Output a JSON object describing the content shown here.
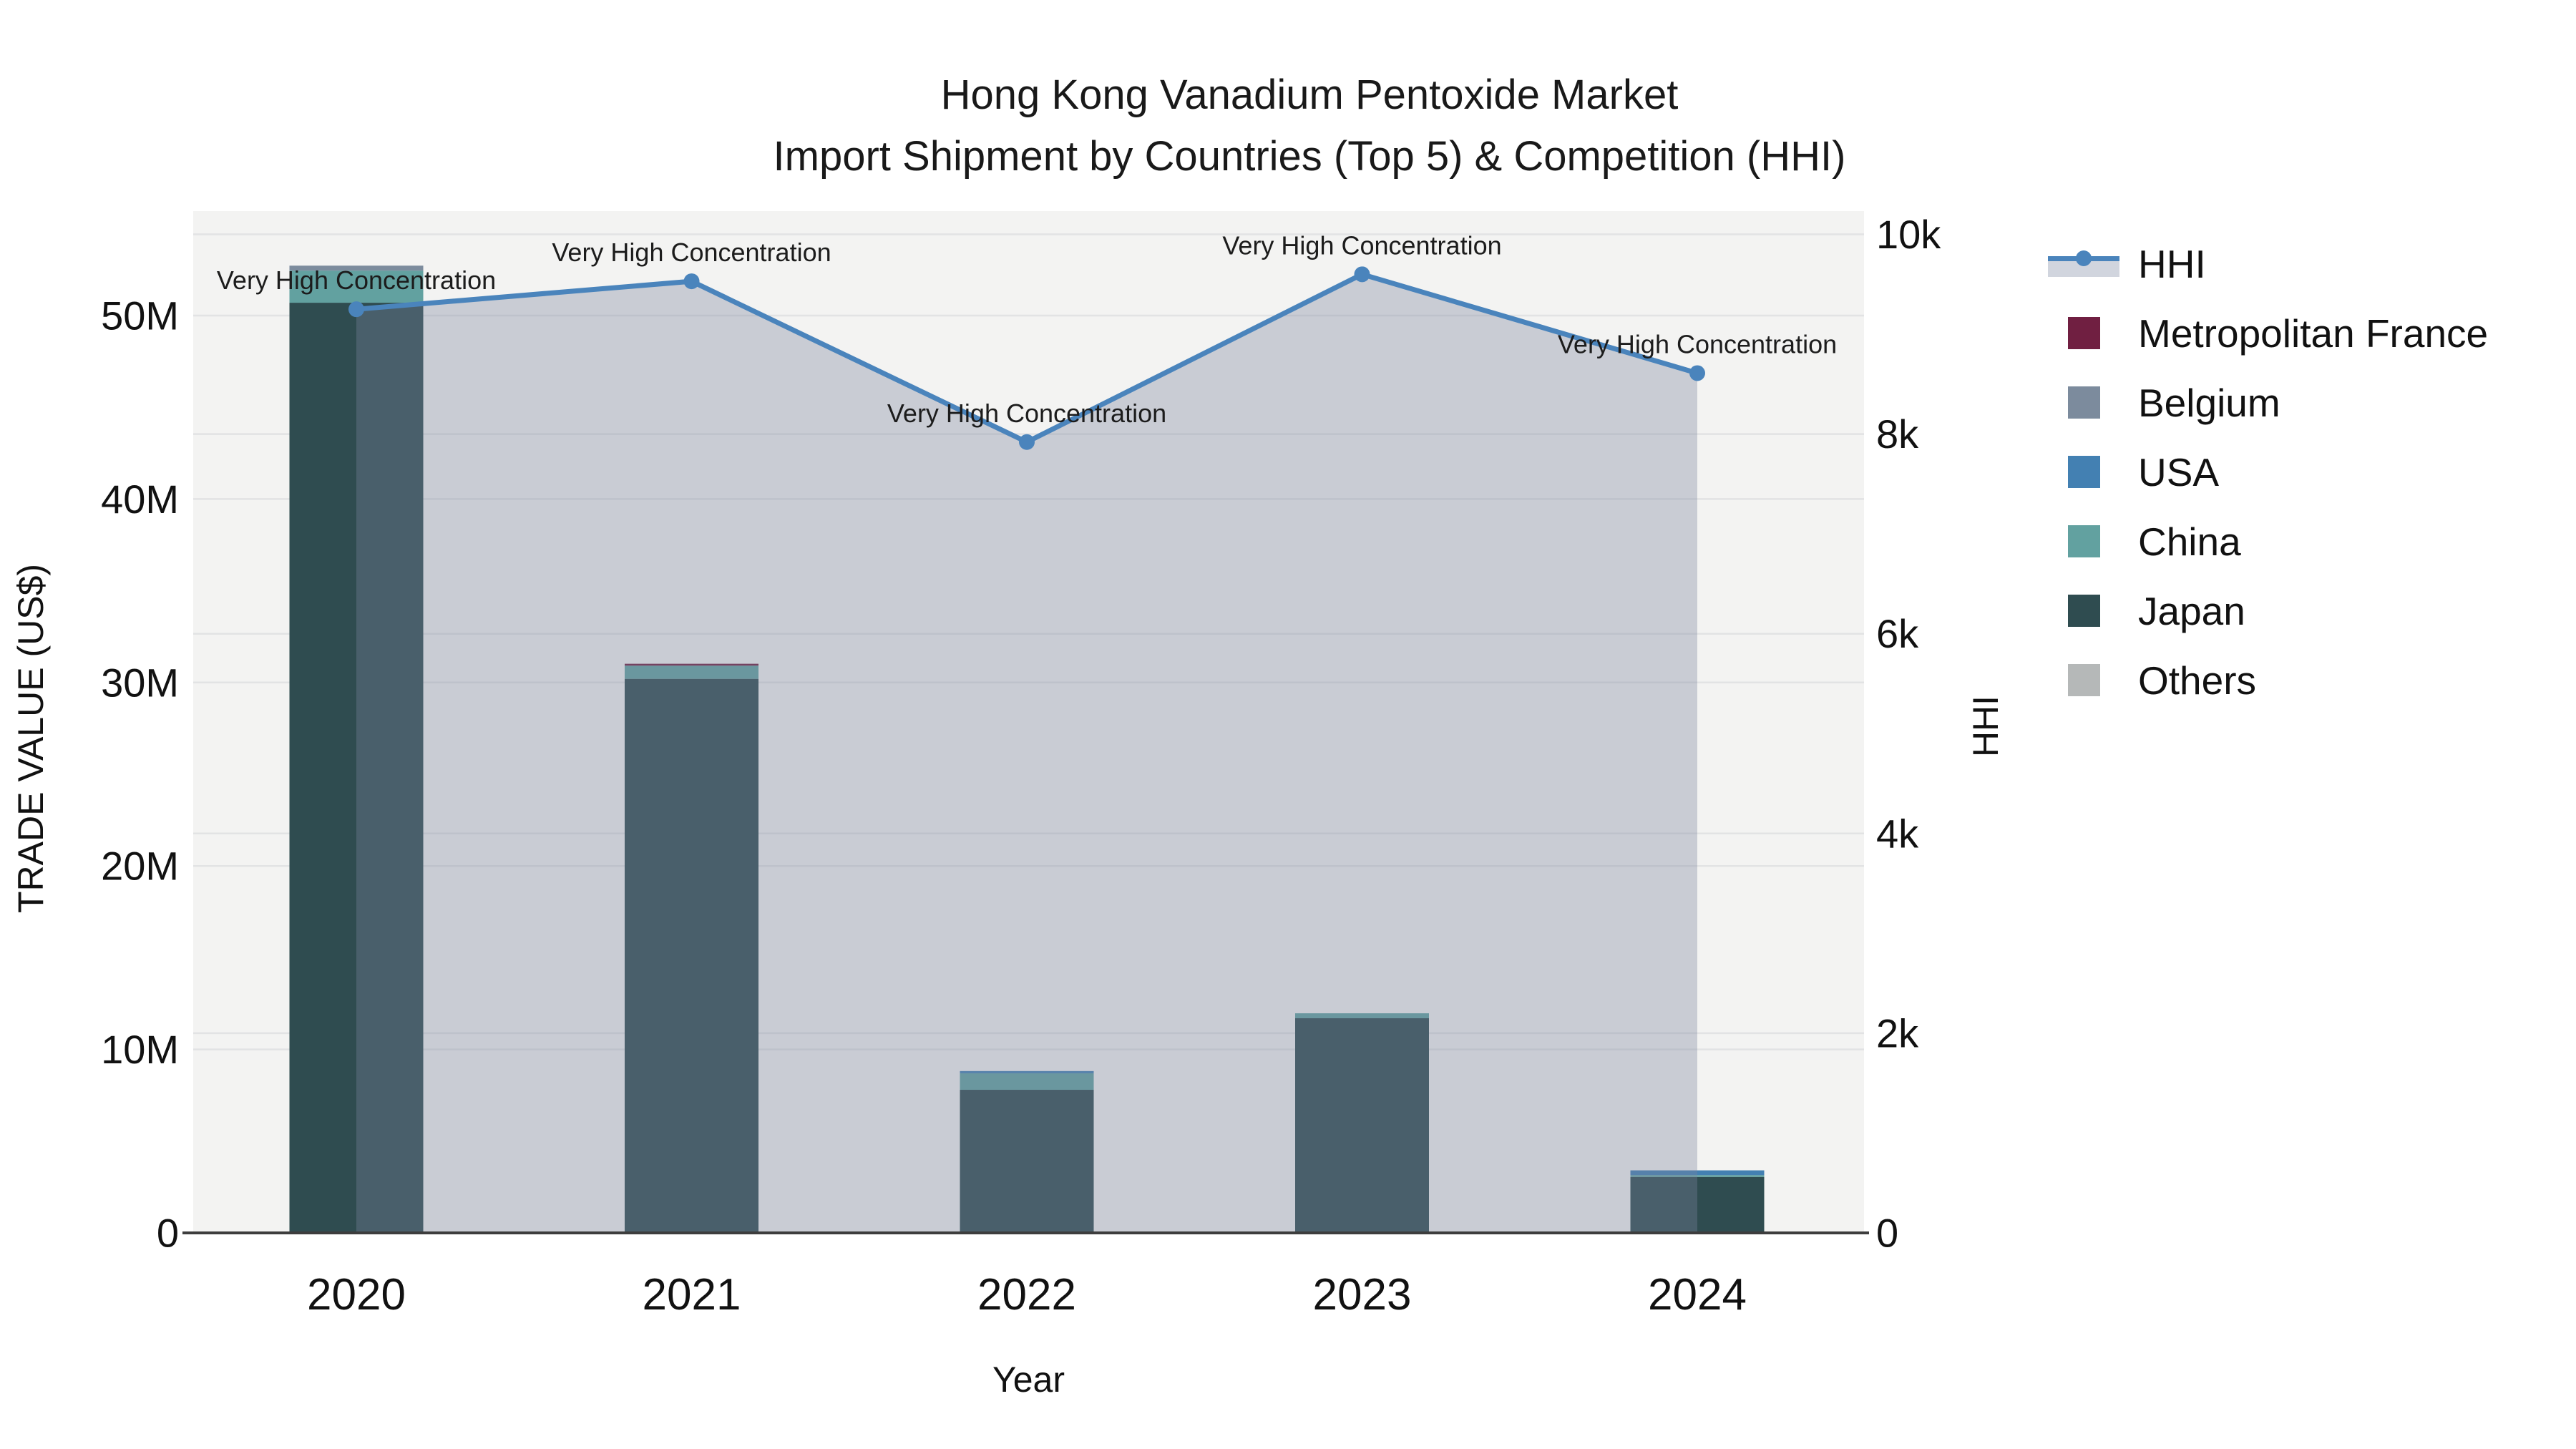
{
  "figure": {
    "title": "Hong Kong Vanadium Pentoxide Market",
    "subtitle": "Import Shipment by Countries (Top 5) & Competition (HHI)"
  },
  "chart_data": {
    "type": "combo-stacked-bar-line",
    "title": "Hong Kong Vanadium Pentoxide Market",
    "subtitle": "Import Shipment by Countries (Top 5) & Competition (HHI)",
    "xlabel": "Year",
    "ylabel_left": "TRADE VALUE (US$)",
    "ylabel_right": "HHI",
    "categories": [
      "2020",
      "2021",
      "2022",
      "2023",
      "2024"
    ],
    "bar_unit": "million US$",
    "bar_series": [
      {
        "name": "Japan",
        "color": "#2F4C50",
        "values_musd": [
          50.7,
          30.2,
          7.8,
          11.7,
          3.05
        ]
      },
      {
        "name": "China",
        "color": "#62A1A0",
        "values_musd": [
          1.75,
          0.72,
          0.9,
          0.27,
          0.1
        ]
      },
      {
        "name": "USA",
        "color": "#4380B2",
        "values_musd": [
          0,
          0,
          0.12,
          0,
          0.26
        ]
      },
      {
        "name": "Belgium",
        "color": "#7C8B9D",
        "values_musd": [
          0.27,
          0,
          0,
          0,
          0
        ]
      },
      {
        "name": "Metropolitan France",
        "color": "#701F41",
        "values_musd": [
          0,
          0.1,
          0,
          0,
          0
        ]
      },
      {
        "name": "Others",
        "color": "#B5B8B8",
        "values_musd": [
          0,
          0,
          0,
          0,
          0
        ]
      }
    ],
    "line_series": {
      "name": "HHI",
      "color": "#4A84BC",
      "area_fill": "rgba(124,133,157,0.35)",
      "values": [
        9250,
        9530,
        7920,
        9600,
        8610
      ]
    },
    "annotations": [
      {
        "text": "Very High Concentration",
        "category": "2020"
      },
      {
        "text": "Very High Concentration",
        "category": "2021"
      },
      {
        "text": "Very High Concentration",
        "category": "2022"
      },
      {
        "text": "Very High Concentration",
        "category": "2023"
      },
      {
        "text": "Very High Concentration",
        "category": "2024"
      }
    ],
    "y_left_axis": {
      "tick_labels": [
        "0",
        "10M",
        "20M",
        "30M",
        "40M",
        "50M"
      ],
      "tick_values_musd": [
        0,
        10,
        20,
        30,
        40,
        50
      ]
    },
    "y_right_axis": {
      "tick_labels": [
        "0",
        "2k",
        "4k",
        "6k",
        "8k",
        "10k"
      ],
      "tick_values": [
        0,
        2000,
        4000,
        6000,
        8000,
        10000
      ]
    },
    "grid": true,
    "plot_bg": "#F3F3F2",
    "axis_line_color": "#3D3D3D",
    "legend_position": "right"
  },
  "legend": {
    "items": [
      {
        "label": "HHI",
        "marker": "line-area",
        "color": "#4A84BC",
        "band": "#D1D5DE"
      },
      {
        "label": "Metropolitan France",
        "marker": "swatch",
        "color": "#701F41"
      },
      {
        "label": "Belgium",
        "marker": "swatch",
        "color": "#7C8B9D"
      },
      {
        "label": "USA",
        "marker": "swatch",
        "color": "#4380B2"
      },
      {
        "label": "China",
        "marker": "swatch",
        "color": "#62A1A0"
      },
      {
        "label": "Japan",
        "marker": "swatch",
        "color": "#2F4C50"
      },
      {
        "label": "Others",
        "marker": "swatch",
        "color": "#B5B8B8"
      }
    ]
  }
}
